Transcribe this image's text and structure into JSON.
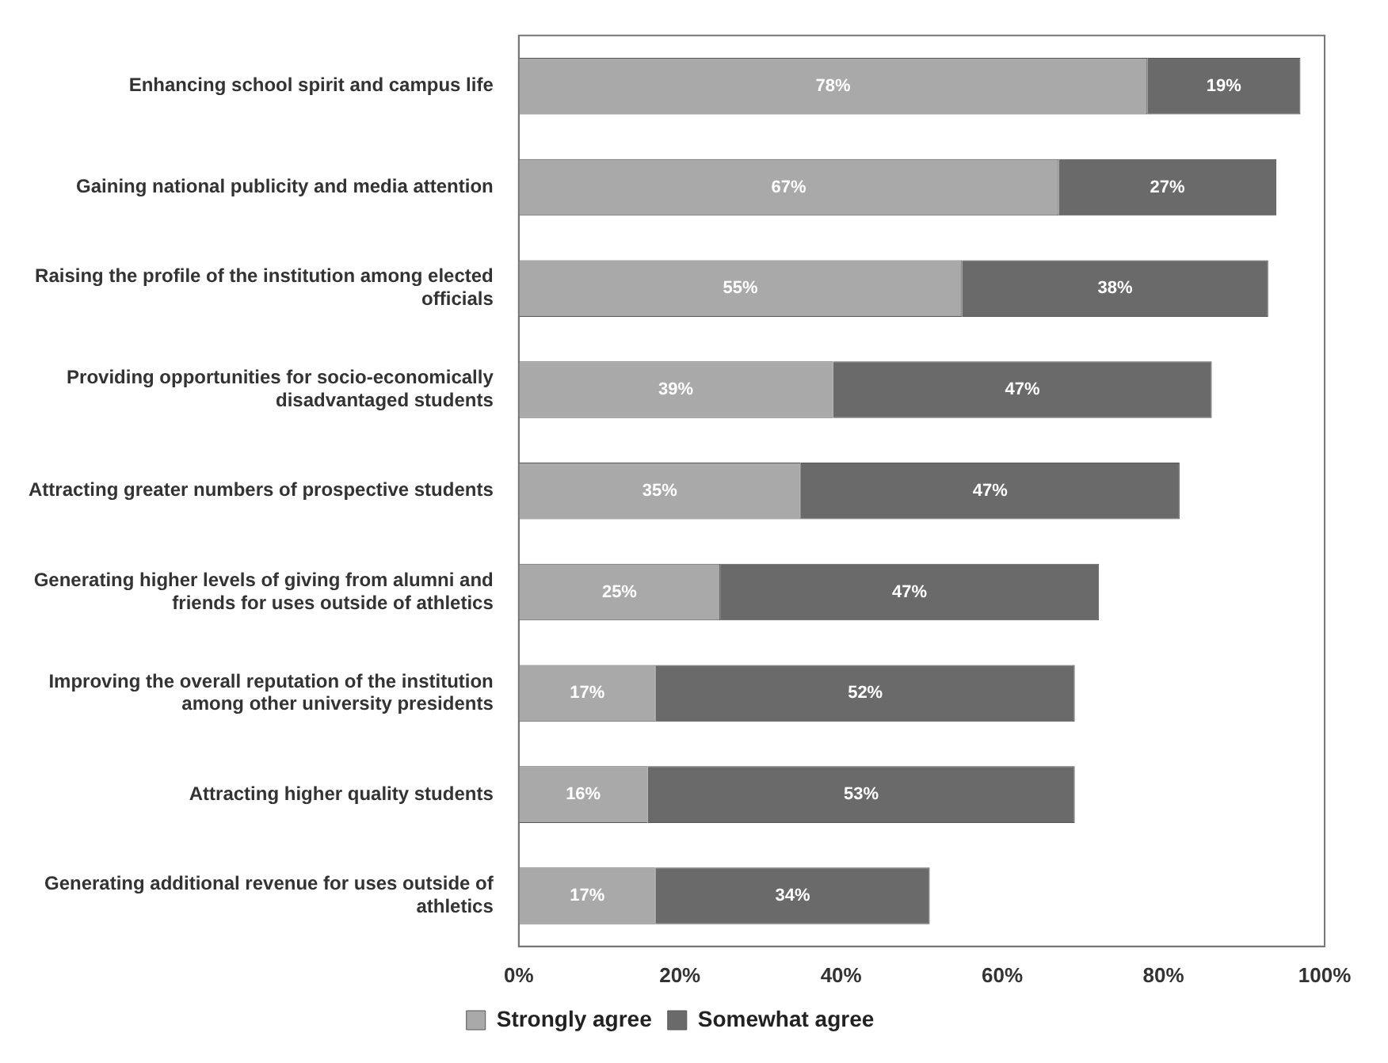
{
  "chart_data": {
    "type": "bar",
    "orientation": "horizontal",
    "stacked": true,
    "categories": [
      "Enhancing school spirit and campus life",
      "Gaining national publicity and media attention",
      "Raising the profile of the institution among elected officials",
      "Providing opportunities for socio-economically disadvantaged students",
      "Attracting greater numbers of prospective students",
      "Generating higher levels of giving from alumni and friends for uses outside of athletics",
      "Improving the overall reputation of the institution among other university presidents",
      "Attracting higher quality students",
      "Generating additional revenue for uses outside of athletics"
    ],
    "series": [
      {
        "name": "Strongly agree",
        "color": "#a9a9a9",
        "values": [
          78,
          67,
          55,
          39,
          35,
          25,
          17,
          16,
          17
        ],
        "value_labels": [
          "78%",
          "67%",
          "55%",
          "39%",
          "35%",
          "25%",
          "17%",
          "16%",
          "17%"
        ]
      },
      {
        "name": "Somewhat agree",
        "color": "#6a6a6a",
        "values": [
          19,
          27,
          38,
          47,
          47,
          47,
          52,
          53,
          34
        ],
        "value_labels": [
          "19%",
          "27%",
          "38%",
          "47%",
          "47%",
          "47%",
          "52%",
          "53%",
          "34%"
        ]
      }
    ],
    "xlim": [
      0,
      100
    ],
    "xticks": [
      {
        "value": 0,
        "label": "0%"
      },
      {
        "value": 20,
        "label": "20%"
      },
      {
        "value": 40,
        "label": "40%"
      },
      {
        "value": 60,
        "label": "60%"
      },
      {
        "value": 80,
        "label": "80%"
      },
      {
        "value": 100,
        "label": "100%"
      }
    ],
    "grid": false,
    "legend": "bottom"
  }
}
